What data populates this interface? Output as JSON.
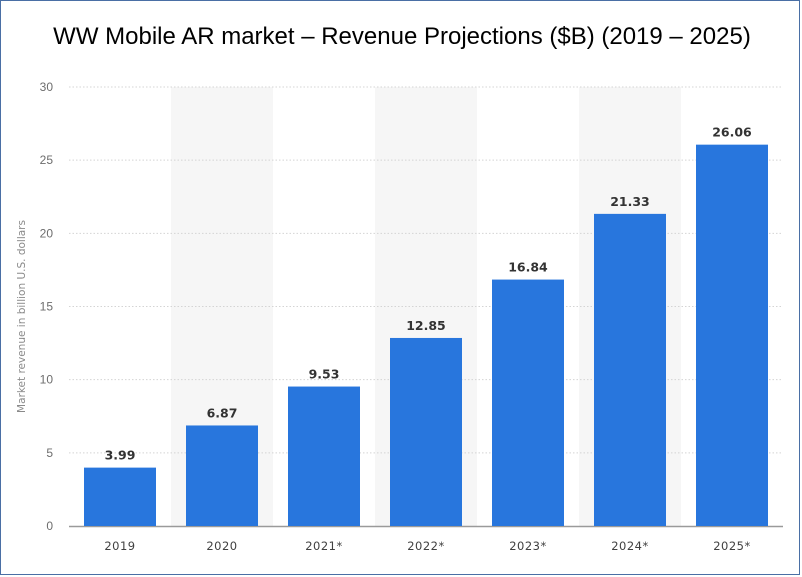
{
  "title": "WW Mobile AR market – Revenue Projections ($B) (2019 – 2025)",
  "chart_data": {
    "type": "bar",
    "categories": [
      "2019",
      "2020",
      "2021*",
      "2022*",
      "2023*",
      "2024*",
      "2025*"
    ],
    "values": [
      3.99,
      6.87,
      9.53,
      12.85,
      16.84,
      21.33,
      26.06
    ],
    "value_labels": [
      "3.99",
      "6.87",
      "9.53",
      "12.85",
      "16.84",
      "21.33",
      "26.06"
    ],
    "xlabel": "",
    "ylabel": "Market revenue in billion U.S. dollars",
    "ylim": [
      0,
      30
    ],
    "yticks": [
      0,
      5,
      10,
      15,
      20,
      25,
      30
    ],
    "grid": true,
    "bar_color": "#2876dd",
    "band_color": "#f6f6f6",
    "grid_color": "#d4d4d4"
  }
}
